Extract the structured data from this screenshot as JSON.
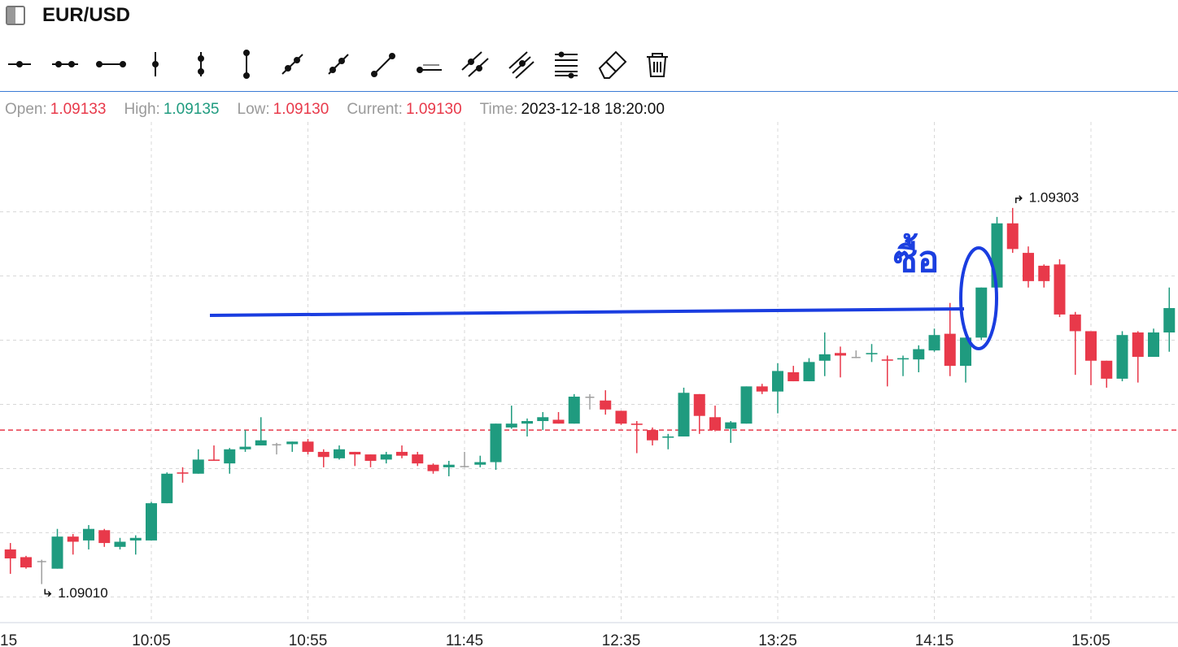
{
  "header": {
    "title": "EUR/USD"
  },
  "info": [
    {
      "label": "Open:",
      "value": "1.09133",
      "color": "#e8394a"
    },
    {
      "label": "High:",
      "value": "1.09135",
      "color": "#1f9b7f"
    },
    {
      "label": "Low:",
      "value": "1.09130",
      "color": "#e8394a"
    },
    {
      "label": "Current:",
      "value": "1.09130",
      "color": "#e8394a"
    },
    {
      "label": "Time:",
      "value": "2023-12-18 18:20:00",
      "color": "#111111"
    }
  ],
  "chart_data": {
    "type": "candlestick",
    "categories": [
      "15",
      null,
      null,
      null,
      null,
      null,
      null,
      null,
      null,
      null,
      "10:05",
      null,
      null,
      null,
      null,
      null,
      null,
      null,
      null,
      null,
      "10:55",
      null,
      null,
      null,
      null,
      null,
      null,
      null,
      null,
      null,
      "11:45",
      null,
      null,
      null,
      null,
      null,
      null,
      null,
      null,
      null,
      "12:35",
      null,
      null,
      null,
      null,
      null,
      null,
      null,
      null,
      null,
      "13:25",
      null,
      null,
      null,
      null,
      null,
      null,
      null,
      null,
      null,
      "14:15",
      null,
      null,
      null,
      null,
      null,
      null,
      null,
      null,
      null,
      "15:05",
      null,
      null,
      null,
      null,
      null
    ],
    "open": [
      null,
      1.09037,
      1.09031,
      1.09028,
      1.09022,
      1.09047,
      1.09044,
      1.09052,
      1.09039,
      1.09044,
      1.09044,
      1.09073,
      1.09097,
      1.09096,
      1.09107,
      1.09104,
      1.09115,
      1.09118,
      1.09119,
      1.09119,
      1.09121,
      1.09113,
      1.09108,
      1.09113,
      1.09111,
      1.09107,
      1.09113,
      1.09111,
      1.09103,
      1.09101,
      1.09102,
      1.09103,
      1.09105,
      1.09132,
      1.09135,
      1.09137,
      1.09138,
      1.09135,
      1.09156,
      1.09153,
      1.09145,
      1.09135,
      1.0913,
      1.09124,
      1.09125,
      1.09158,
      1.0914,
      1.09131,
      1.09135,
      1.09164,
      1.0916,
      1.09175,
      1.09168,
      1.09184,
      1.0919,
      1.09187,
      1.09189,
      1.09185,
      1.09185,
      1.09185,
      1.09192,
      1.09205,
      1.0918,
      1.09202,
      1.09241,
      1.09291,
      1.09268,
      1.09258,
      1.09259,
      1.0922,
      1.09207,
      1.09184,
      1.0917,
      1.09206,
      1.09187,
      1.09206
    ],
    "high": [
      null,
      1.09042,
      1.09032,
      1.09029,
      1.09053,
      1.09049,
      1.09056,
      1.09053,
      1.09046,
      1.09048,
      1.09074,
      1.09097,
      1.09101,
      1.09115,
      1.09118,
      1.09116,
      1.0913,
      1.0914,
      1.0912,
      1.09121,
      1.09123,
      1.09115,
      1.09118,
      1.09113,
      1.09111,
      1.09113,
      1.09118,
      1.09113,
      1.09104,
      1.09106,
      1.09113,
      1.0911,
      1.09135,
      1.09149,
      1.09139,
      1.09144,
      1.09144,
      1.09158,
      1.09158,
      1.09161,
      1.09145,
      1.09137,
      1.09132,
      1.09127,
      1.09163,
      1.09158,
      1.09149,
      1.09137,
      1.09164,
      1.09166,
      1.09182,
      1.0918,
      1.09186,
      1.09206,
      1.09195,
      1.09192,
      1.09197,
      1.09188,
      1.09188,
      1.09196,
      1.09209,
      1.09229,
      1.09202,
      1.09241,
      1.09296,
      1.09303,
      1.09273,
      1.09259,
      1.09263,
      1.09222,
      1.09207,
      1.09184,
      1.09207,
      1.09207,
      1.09209,
      1.09241
    ],
    "low": [
      null,
      1.09018,
      1.09022,
      1.0901,
      1.09022,
      1.09033,
      1.09037,
      1.09039,
      1.09037,
      1.09033,
      1.09044,
      1.09073,
      1.09089,
      1.09096,
      1.09106,
      1.09096,
      1.09113,
      1.09118,
      1.09111,
      1.09113,
      1.09111,
      1.09101,
      1.09107,
      1.09102,
      1.09101,
      1.09104,
      1.09108,
      1.09102,
      1.09096,
      1.09094,
      1.09101,
      1.09101,
      1.09099,
      1.09131,
      1.09125,
      1.0913,
      1.09135,
      1.09135,
      1.09146,
      1.09142,
      1.09134,
      1.09112,
      1.09118,
      1.09115,
      1.09125,
      1.09127,
      1.09129,
      1.0912,
      1.09135,
      1.09158,
      1.09143,
      1.09168,
      1.09168,
      1.09172,
      1.09171,
      1.09186,
      1.09183,
      1.09164,
      1.09172,
      1.09175,
      1.09191,
      1.09172,
      1.09167,
      1.092,
      1.0924,
      1.09268,
      1.09241,
      1.09241,
      1.09218,
      1.09173,
      1.09165,
      1.09163,
      1.09168,
      1.09167,
      1.09187,
      1.09191
    ],
    "close": [
      null,
      1.0903,
      1.09023,
      1.09028,
      1.09047,
      1.09043,
      1.09053,
      1.09042,
      1.09043,
      1.09046,
      1.09073,
      1.09096,
      1.09096,
      1.09107,
      1.09106,
      1.09115,
      1.09117,
      1.09122,
      1.09119,
      1.09121,
      1.09113,
      1.09109,
      1.09115,
      1.09111,
      1.09106,
      1.09111,
      1.0911,
      1.09104,
      1.09098,
      1.09103,
      1.09102,
      1.09105,
      1.09135,
      1.09135,
      1.09137,
      1.0914,
      1.09135,
      1.09156,
      1.09156,
      1.09146,
      1.09135,
      1.09134,
      1.09122,
      1.09125,
      1.09159,
      1.09141,
      1.0913,
      1.09136,
      1.09164,
      1.0916,
      1.09176,
      1.09168,
      1.09183,
      1.09189,
      1.09188,
      1.09187,
      1.0919,
      1.09184,
      1.09186,
      1.09193,
      1.09204,
      1.0918,
      1.09202,
      1.09241,
      1.09291,
      1.09271,
      1.09246,
      1.09246,
      1.0922,
      1.09207,
      1.09184,
      1.0917,
      1.09204,
      1.09187,
      1.09206,
      1.09225
    ],
    "up_color": "#1f9b7f",
    "down_color": "#e8394a",
    "flat_color": "#a0a0a0",
    "ylim": [
      1.0898,
      1.0937
    ],
    "yticks": [
      1.09,
      1.0905,
      1.091,
      1.0915,
      1.092,
      1.0925,
      1.093
    ],
    "grid": true,
    "price_line": 1.0913,
    "price_line_color": "#e8394a",
    "annotations": [
      {
        "value": 1.09303,
        "label": "1.09303"
      },
      {
        "value": 1.0901,
        "label": "1.09010"
      }
    ],
    "drawing_text": "ซื้อ"
  }
}
